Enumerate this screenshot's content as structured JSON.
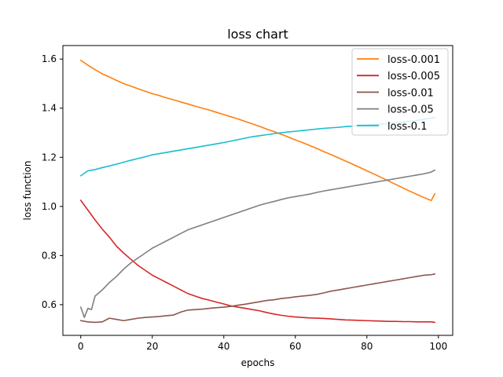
{
  "chart_data": {
    "type": "line",
    "title": "loss chart",
    "xlabel": "epochs",
    "ylabel": "loss function",
    "xlim": [
      -5,
      104
    ],
    "ylim": [
      0.475,
      1.655
    ],
    "xticks": [
      0,
      20,
      40,
      60,
      80,
      100
    ],
    "yticks": [
      0.6,
      0.8,
      1.0,
      1.2,
      1.4,
      1.6
    ],
    "xtick_labels": [
      "0",
      "20",
      "40",
      "60",
      "80",
      "100"
    ],
    "ytick_labels": [
      "0.6",
      "0.8",
      "1.0",
      "1.2",
      "1.4",
      "1.6"
    ],
    "legend_position": "upper-right",
    "grid": false,
    "series": [
      {
        "name": "loss-0.001",
        "color": "#ff7f0e",
        "points": [
          [
            0,
            1.595
          ],
          [
            2,
            1.575
          ],
          [
            4,
            1.557
          ],
          [
            6,
            1.54
          ],
          [
            8,
            1.527
          ],
          [
            10,
            1.513
          ],
          [
            12,
            1.5
          ],
          [
            14,
            1.49
          ],
          [
            16,
            1.479
          ],
          [
            18,
            1.469
          ],
          [
            20,
            1.459
          ],
          [
            22,
            1.451
          ],
          [
            24,
            1.442
          ],
          [
            26,
            1.434
          ],
          [
            28,
            1.425
          ],
          [
            30,
            1.417
          ],
          [
            32,
            1.408
          ],
          [
            34,
            1.4
          ],
          [
            36,
            1.392
          ],
          [
            38,
            1.383
          ],
          [
            40,
            1.374
          ],
          [
            42,
            1.365
          ],
          [
            44,
            1.356
          ],
          [
            46,
            1.346
          ],
          [
            48,
            1.336
          ],
          [
            50,
            1.326
          ],
          [
            52,
            1.315
          ],
          [
            54,
            1.305
          ],
          [
            56,
            1.294
          ],
          [
            58,
            1.283
          ],
          [
            60,
            1.271
          ],
          [
            62,
            1.26
          ],
          [
            64,
            1.248
          ],
          [
            66,
            1.236
          ],
          [
            68,
            1.223
          ],
          [
            70,
            1.211
          ],
          [
            72,
            1.198
          ],
          [
            74,
            1.185
          ],
          [
            76,
            1.172
          ],
          [
            78,
            1.159
          ],
          [
            80,
            1.145
          ],
          [
            82,
            1.132
          ],
          [
            84,
            1.118
          ],
          [
            86,
            1.104
          ],
          [
            88,
            1.09
          ],
          [
            90,
            1.076
          ],
          [
            92,
            1.062
          ],
          [
            94,
            1.049
          ],
          [
            96,
            1.036
          ],
          [
            98,
            1.024
          ],
          [
            99,
            1.052
          ]
        ]
      },
      {
        "name": "loss-0.005",
        "color": "#d62728",
        "points": [
          [
            0,
            1.025
          ],
          [
            2,
            0.985
          ],
          [
            4,
            0.945
          ],
          [
            6,
            0.908
          ],
          [
            8,
            0.875
          ],
          [
            10,
            0.838
          ],
          [
            12,
            0.81
          ],
          [
            14,
            0.785
          ],
          [
            16,
            0.76
          ],
          [
            18,
            0.74
          ],
          [
            20,
            0.72
          ],
          [
            22,
            0.705
          ],
          [
            24,
            0.69
          ],
          [
            26,
            0.675
          ],
          [
            28,
            0.66
          ],
          [
            30,
            0.645
          ],
          [
            32,
            0.635
          ],
          [
            34,
            0.625
          ],
          [
            36,
            0.618
          ],
          [
            38,
            0.61
          ],
          [
            40,
            0.603
          ],
          [
            42,
            0.595
          ],
          [
            44,
            0.59
          ],
          [
            46,
            0.585
          ],
          [
            48,
            0.58
          ],
          [
            50,
            0.575
          ],
          [
            52,
            0.568
          ],
          [
            54,
            0.562
          ],
          [
            56,
            0.557
          ],
          [
            58,
            0.553
          ],
          [
            60,
            0.55
          ],
          [
            62,
            0.548
          ],
          [
            64,
            0.546
          ],
          [
            66,
            0.545
          ],
          [
            68,
            0.544
          ],
          [
            70,
            0.542
          ],
          [
            72,
            0.54
          ],
          [
            74,
            0.538
          ],
          [
            76,
            0.537
          ],
          [
            78,
            0.536
          ],
          [
            80,
            0.535
          ],
          [
            82,
            0.534
          ],
          [
            84,
            0.533
          ],
          [
            86,
            0.532
          ],
          [
            88,
            0.532
          ],
          [
            90,
            0.531
          ],
          [
            92,
            0.531
          ],
          [
            94,
            0.53
          ],
          [
            96,
            0.53
          ],
          [
            98,
            0.53
          ],
          [
            99,
            0.528
          ]
        ]
      },
      {
        "name": "loss-0.01",
        "color": "#8c564b",
        "points": [
          [
            0,
            0.535
          ],
          [
            2,
            0.53
          ],
          [
            4,
            0.528
          ],
          [
            6,
            0.53
          ],
          [
            8,
            0.545
          ],
          [
            10,
            0.54
          ],
          [
            12,
            0.535
          ],
          [
            14,
            0.54
          ],
          [
            16,
            0.545
          ],
          [
            18,
            0.548
          ],
          [
            20,
            0.55
          ],
          [
            22,
            0.552
          ],
          [
            24,
            0.555
          ],
          [
            26,
            0.558
          ],
          [
            28,
            0.57
          ],
          [
            30,
            0.578
          ],
          [
            32,
            0.58
          ],
          [
            34,
            0.582
          ],
          [
            36,
            0.585
          ],
          [
            38,
            0.588
          ],
          [
            40,
            0.59
          ],
          [
            42,
            0.593
          ],
          [
            44,
            0.598
          ],
          [
            46,
            0.602
          ],
          [
            48,
            0.607
          ],
          [
            50,
            0.612
          ],
          [
            52,
            0.617
          ],
          [
            54,
            0.62
          ],
          [
            56,
            0.625
          ],
          [
            58,
            0.628
          ],
          [
            60,
            0.632
          ],
          [
            62,
            0.635
          ],
          [
            64,
            0.638
          ],
          [
            66,
            0.642
          ],
          [
            68,
            0.648
          ],
          [
            70,
            0.655
          ],
          [
            72,
            0.66
          ],
          [
            74,
            0.665
          ],
          [
            76,
            0.67
          ],
          [
            78,
            0.675
          ],
          [
            80,
            0.68
          ],
          [
            82,
            0.685
          ],
          [
            84,
            0.69
          ],
          [
            86,
            0.695
          ],
          [
            88,
            0.7
          ],
          [
            90,
            0.705
          ],
          [
            92,
            0.71
          ],
          [
            94,
            0.715
          ],
          [
            96,
            0.72
          ],
          [
            98,
            0.722
          ],
          [
            99,
            0.725
          ]
        ]
      },
      {
        "name": "loss-0.05",
        "color": "#7f7f7f",
        "points": [
          [
            0,
            0.59
          ],
          [
            1,
            0.548
          ],
          [
            2,
            0.585
          ],
          [
            3,
            0.58
          ],
          [
            4,
            0.635
          ],
          [
            6,
            0.66
          ],
          [
            8,
            0.69
          ],
          [
            10,
            0.715
          ],
          [
            12,
            0.745
          ],
          [
            14,
            0.77
          ],
          [
            16,
            0.79
          ],
          [
            18,
            0.81
          ],
          [
            20,
            0.83
          ],
          [
            22,
            0.845
          ],
          [
            24,
            0.86
          ],
          [
            26,
            0.875
          ],
          [
            28,
            0.89
          ],
          [
            30,
            0.905
          ],
          [
            32,
            0.915
          ],
          [
            34,
            0.925
          ],
          [
            36,
            0.935
          ],
          [
            38,
            0.945
          ],
          [
            40,
            0.955
          ],
          [
            42,
            0.965
          ],
          [
            44,
            0.975
          ],
          [
            46,
            0.985
          ],
          [
            48,
            0.995
          ],
          [
            50,
            1.005
          ],
          [
            52,
            1.013
          ],
          [
            54,
            1.02
          ],
          [
            56,
            1.028
          ],
          [
            58,
            1.035
          ],
          [
            60,
            1.04
          ],
          [
            62,
            1.045
          ],
          [
            64,
            1.05
          ],
          [
            66,
            1.057
          ],
          [
            68,
            1.063
          ],
          [
            70,
            1.068
          ],
          [
            72,
            1.073
          ],
          [
            74,
            1.078
          ],
          [
            76,
            1.083
          ],
          [
            78,
            1.088
          ],
          [
            80,
            1.093
          ],
          [
            82,
            1.098
          ],
          [
            84,
            1.103
          ],
          [
            86,
            1.108
          ],
          [
            88,
            1.113
          ],
          [
            90,
            1.118
          ],
          [
            92,
            1.123
          ],
          [
            94,
            1.128
          ],
          [
            96,
            1.133
          ],
          [
            98,
            1.14
          ],
          [
            99,
            1.148
          ]
        ]
      },
      {
        "name": "loss-0.1",
        "color": "#17becf",
        "points": [
          [
            0,
            1.125
          ],
          [
            2,
            1.145
          ],
          [
            4,
            1.15
          ],
          [
            6,
            1.158
          ],
          [
            8,
            1.165
          ],
          [
            10,
            1.172
          ],
          [
            12,
            1.18
          ],
          [
            14,
            1.188
          ],
          [
            16,
            1.195
          ],
          [
            18,
            1.202
          ],
          [
            20,
            1.21
          ],
          [
            22,
            1.215
          ],
          [
            24,
            1.22
          ],
          [
            26,
            1.225
          ],
          [
            28,
            1.23
          ],
          [
            30,
            1.235
          ],
          [
            32,
            1.24
          ],
          [
            34,
            1.245
          ],
          [
            36,
            1.25
          ],
          [
            38,
            1.255
          ],
          [
            40,
            1.26
          ],
          [
            42,
            1.266
          ],
          [
            44,
            1.272
          ],
          [
            46,
            1.278
          ],
          [
            48,
            1.284
          ],
          [
            50,
            1.288
          ],
          [
            52,
            1.292
          ],
          [
            54,
            1.296
          ],
          [
            56,
            1.3
          ],
          [
            58,
            1.303
          ],
          [
            60,
            1.306
          ],
          [
            62,
            1.309
          ],
          [
            64,
            1.312
          ],
          [
            66,
            1.315
          ],
          [
            68,
            1.318
          ],
          [
            70,
            1.32
          ],
          [
            72,
            1.322
          ],
          [
            74,
            1.325
          ],
          [
            76,
            1.327
          ],
          [
            78,
            1.329
          ],
          [
            80,
            1.331
          ],
          [
            82,
            1.333
          ],
          [
            84,
            1.335
          ],
          [
            86,
            1.338
          ],
          [
            88,
            1.34
          ],
          [
            90,
            1.343
          ],
          [
            92,
            1.346
          ],
          [
            94,
            1.35
          ],
          [
            96,
            1.355
          ],
          [
            98,
            1.36
          ],
          [
            99,
            1.362
          ]
        ]
      }
    ]
  }
}
